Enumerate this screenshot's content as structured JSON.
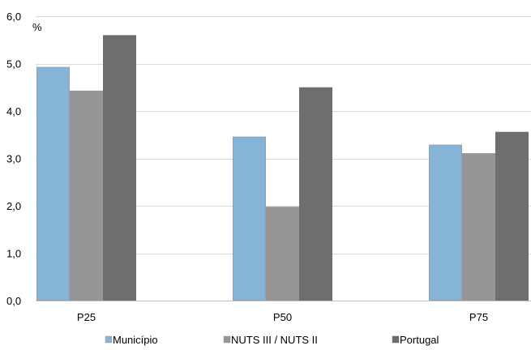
{
  "chart_data": {
    "type": "bar",
    "title": "",
    "xlabel": "",
    "ylabel": "",
    "unit_label": "%",
    "categories": [
      "P25",
      "P50",
      "P75"
    ],
    "ylim": [
      0,
      6
    ],
    "yticks": [
      0,
      1,
      2,
      3,
      4,
      5,
      6
    ],
    "ytick_labels": [
      "0,0",
      "1,0",
      "2,0",
      "3,0",
      "4,0",
      "5,0",
      "6,0"
    ],
    "grid": true,
    "legend_position": "bottom",
    "series": [
      {
        "name": "Município",
        "color": "#86b4d6",
        "border": "#8fa0b8",
        "values": [
          4.93,
          3.46,
          3.29
        ]
      },
      {
        "name": "NUTS III / NUTS II",
        "color": "#969696",
        "border": "#969696",
        "values": [
          4.43,
          1.98,
          3.11
        ]
      },
      {
        "name": "Portugal",
        "color": "#6f6d6d",
        "border": "#6f6d6d",
        "values": [
          5.6,
          4.5,
          3.56
        ]
      }
    ]
  }
}
